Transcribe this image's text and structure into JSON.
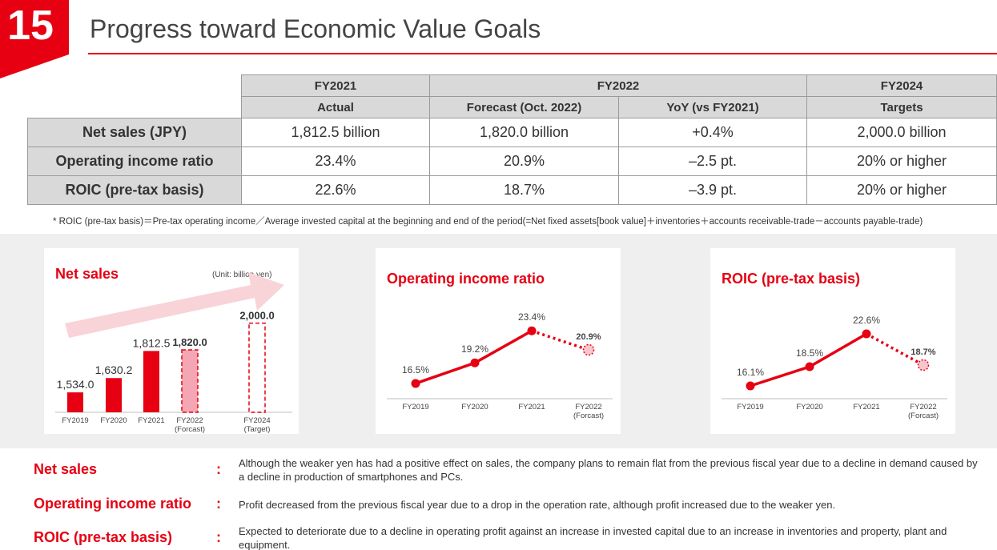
{
  "slide": {
    "number": "15",
    "title": "Progress toward Economic Value Goals",
    "accent_color": "#e60012"
  },
  "table": {
    "header_years": [
      "FY2021",
      "FY2022",
      "FY2024"
    ],
    "header_sub": [
      "Actual",
      "Forecast (Oct. 2022)",
      "YoY (vs FY2021)",
      "Targets"
    ],
    "rows": [
      {
        "label": "Net sales (JPY)",
        "cells": [
          "1,812.5 billion",
          "1,820.0 billion",
          "+0.4%",
          "2,000.0 billion"
        ]
      },
      {
        "label": "Operating income ratio",
        "cells": [
          "23.4%",
          "20.9%",
          "–2.5 pt.",
          "20% or higher"
        ]
      },
      {
        "label": "ROIC (pre-tax basis)",
        "cells": [
          "22.6%",
          "18.7%",
          "–3.9 pt.",
          "20% or higher"
        ]
      }
    ]
  },
  "footnote": "* ROIC (pre-tax basis)＝Pre-tax operating income／Average invested capital at the beginning and end of the period(=Net fixed assets[book value]＋inventories＋accounts receivable-trade－accounts payable-trade)",
  "chart_data": [
    {
      "type": "bar",
      "title": "Net sales",
      "unit_note": "(Unit: billion yen)",
      "categories": [
        "FY2019",
        "FY2020",
        "FY2021",
        "FY2022\n(Forcast)",
        "FY2024\n(Target)"
      ],
      "values": [
        1534.0,
        1630.2,
        1812.5,
        1820.0,
        2000.0
      ],
      "labels": [
        "1,534.0",
        "1,630.2",
        "1,812.5",
        "1,820.0",
        "2,000.0"
      ],
      "styles": [
        "solid",
        "solid",
        "solid",
        "forecast",
        "target"
      ],
      "bold_labels": [
        false,
        false,
        false,
        true,
        true
      ],
      "ylim": [
        1400,
        2030
      ],
      "arrow": true
    },
    {
      "type": "line",
      "title": "Operating income ratio",
      "categories": [
        "FY2019",
        "FY2020",
        "FY2021",
        "FY2022\n(Forcast)"
      ],
      "values": [
        16.5,
        19.2,
        23.4,
        20.9
      ],
      "labels": [
        "16.5%",
        "19.2%",
        "23.4%",
        "20.9%"
      ],
      "forecast_last": true,
      "ylim": [
        14.5,
        25
      ]
    },
    {
      "type": "line",
      "title": "ROIC (pre-tax basis)",
      "categories": [
        "FY2019",
        "FY2020",
        "FY2021",
        "FY2022\n(Forcast)"
      ],
      "values": [
        16.1,
        18.5,
        22.6,
        18.7
      ],
      "labels": [
        "16.1%",
        "18.5%",
        "22.6%",
        "18.7%"
      ],
      "forecast_last": true,
      "ylim": [
        14.5,
        24.5
      ]
    }
  ],
  "comments": [
    {
      "label": "Net sales",
      "colon": ":",
      "text": "Although the weaker yen has had a positive effect on sales, the company plans to remain flat from the previous fiscal year due to a decline in demand caused by a decline in production of smartphones and PCs."
    },
    {
      "label": "Operating income ratio",
      "colon": ":",
      "text": "Profit decreased from the previous fiscal year due to a drop in the operation rate, although profit increased due to the weaker yen."
    },
    {
      "label": "ROIC (pre-tax basis)",
      "colon": ":",
      "text": "Expected to deteriorate due to a decline in operating profit against an increase in invested capital due to an increase in inventories and property, plant and equipment."
    }
  ]
}
